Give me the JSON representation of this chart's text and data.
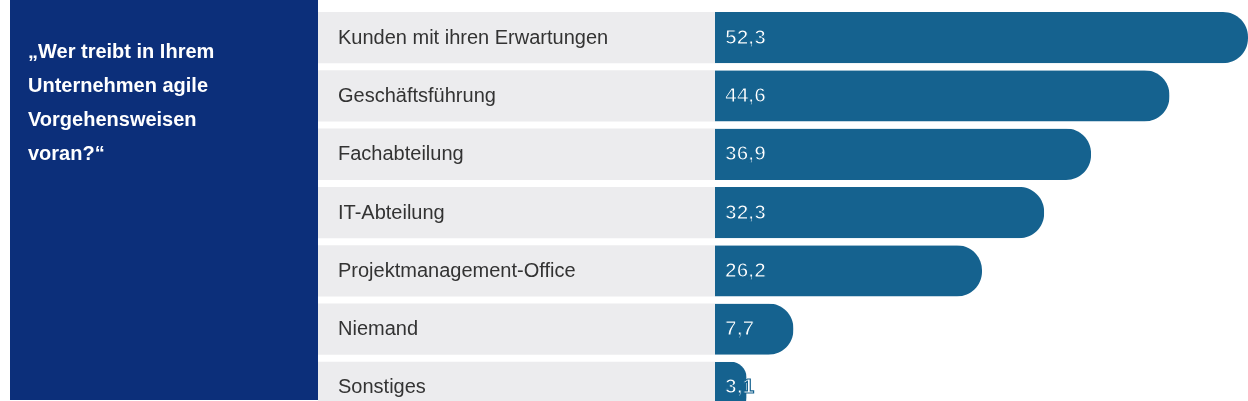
{
  "chart_data": {
    "type": "bar",
    "orientation": "horizontal",
    "title": "„Wer treibt in Ihrem Unternehmen agile Vorgehensweisen voran?“",
    "categories": [
      "Kunden mit ihren Erwartungen",
      "Geschäftsführung",
      "Fachabteilung",
      "IT-Abteilung",
      "Projektmanagement-Office",
      "Niemand",
      "Sonstiges"
    ],
    "values": [
      52.3,
      44.6,
      36.9,
      32.3,
      26.2,
      7.7,
      3.1
    ],
    "value_labels": [
      "52,3",
      "44,6",
      "36,9",
      "32,3",
      "26,2",
      "7,7",
      "3,1"
    ],
    "color": "#15628f"
  }
}
